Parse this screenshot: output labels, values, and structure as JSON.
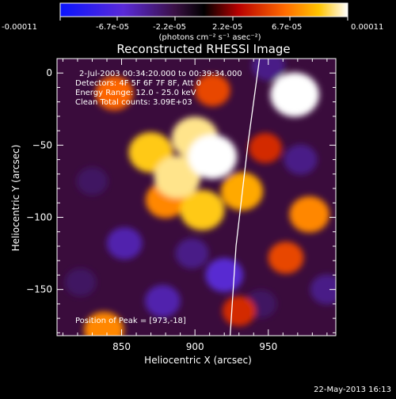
{
  "colorbar": {
    "ticks": [
      "-0.00011",
      "-6.7e-05",
      "-2.2e-05",
      "2.2e-05",
      "6.7e-05",
      "0.00011"
    ],
    "unit_label": "(photons cm⁻² s⁻¹ asec⁻²)"
  },
  "image_info": {
    "time_range": "2-Jul-2003 00:34:20.000 to 00:39:34.000",
    "detectors": "Detectors: 4F 5F 6F 7F 8F, Att 0",
    "energy": "Energy Range: 12.0 - 25.0 keV",
    "clean": "Clean    Total counts: 3.09E+03",
    "peak": "Position of Peak = [973,-18]"
  },
  "footer": {
    "date": "22-May-2013 16:13"
  },
  "chart_data": {
    "type": "heatmap",
    "title": "Reconstructed RHESSI Image",
    "xlabel": "Heliocentric X (arcsec)",
    "ylabel": "Heliocentric Y (arcsec)",
    "xlim": [
      806,
      996
    ],
    "ylim": [
      -182,
      10
    ],
    "xticks": [
      850,
      900,
      950
    ],
    "yticks": [
      0,
      -50,
      -100,
      -150
    ],
    "color_range": [
      -0.00011,
      0.00011
    ],
    "limb_curve": [
      [
        944,
        10
      ],
      [
        936,
        -50
      ],
      [
        928,
        -120
      ],
      [
        924,
        -182
      ]
    ],
    "peak_position": [
      973,
      -18
    ],
    "sources": [
      {
        "x": 870,
        "y": -55,
        "value": 9e-05
      },
      {
        "x": 888,
        "y": -72,
        "value": 0.0001
      },
      {
        "x": 900,
        "y": -45,
        "value": 0.0001
      },
      {
        "x": 912,
        "y": -58,
        "value": 0.00011
      },
      {
        "x": 905,
        "y": -95,
        "value": 9e-05
      },
      {
        "x": 880,
        "y": -88,
        "value": 7e-05
      },
      {
        "x": 932,
        "y": -82,
        "value": 8e-05
      },
      {
        "x": 968,
        "y": -15,
        "value": 0.00011
      },
      {
        "x": 978,
        "y": -98,
        "value": 7e-05
      },
      {
        "x": 962,
        "y": -128,
        "value": 5e-05
      },
      {
        "x": 845,
        "y": -14,
        "value": 6e-05
      },
      {
        "x": 912,
        "y": -12,
        "value": 5e-05
      },
      {
        "x": 948,
        "y": -52,
        "value": 4e-05
      },
      {
        "x": 838,
        "y": -178,
        "value": 7e-05
      },
      {
        "x": 930,
        "y": -165,
        "value": 4e-05
      },
      {
        "x": 830,
        "y": -75,
        "value": -3e-05
      },
      {
        "x": 852,
        "y": -118,
        "value": -5e-05
      },
      {
        "x": 920,
        "y": -140,
        "value": -6e-05
      },
      {
        "x": 878,
        "y": -158,
        "value": -5e-05
      },
      {
        "x": 972,
        "y": -60,
        "value": -4e-05
      },
      {
        "x": 990,
        "y": -150,
        "value": -4e-05
      },
      {
        "x": 950,
        "y": 5,
        "value": -4e-05
      },
      {
        "x": 822,
        "y": -145,
        "value": -3e-05
      },
      {
        "x": 898,
        "y": -125,
        "value": -4e-05
      },
      {
        "x": 945,
        "y": -160,
        "value": -3e-05
      }
    ]
  }
}
